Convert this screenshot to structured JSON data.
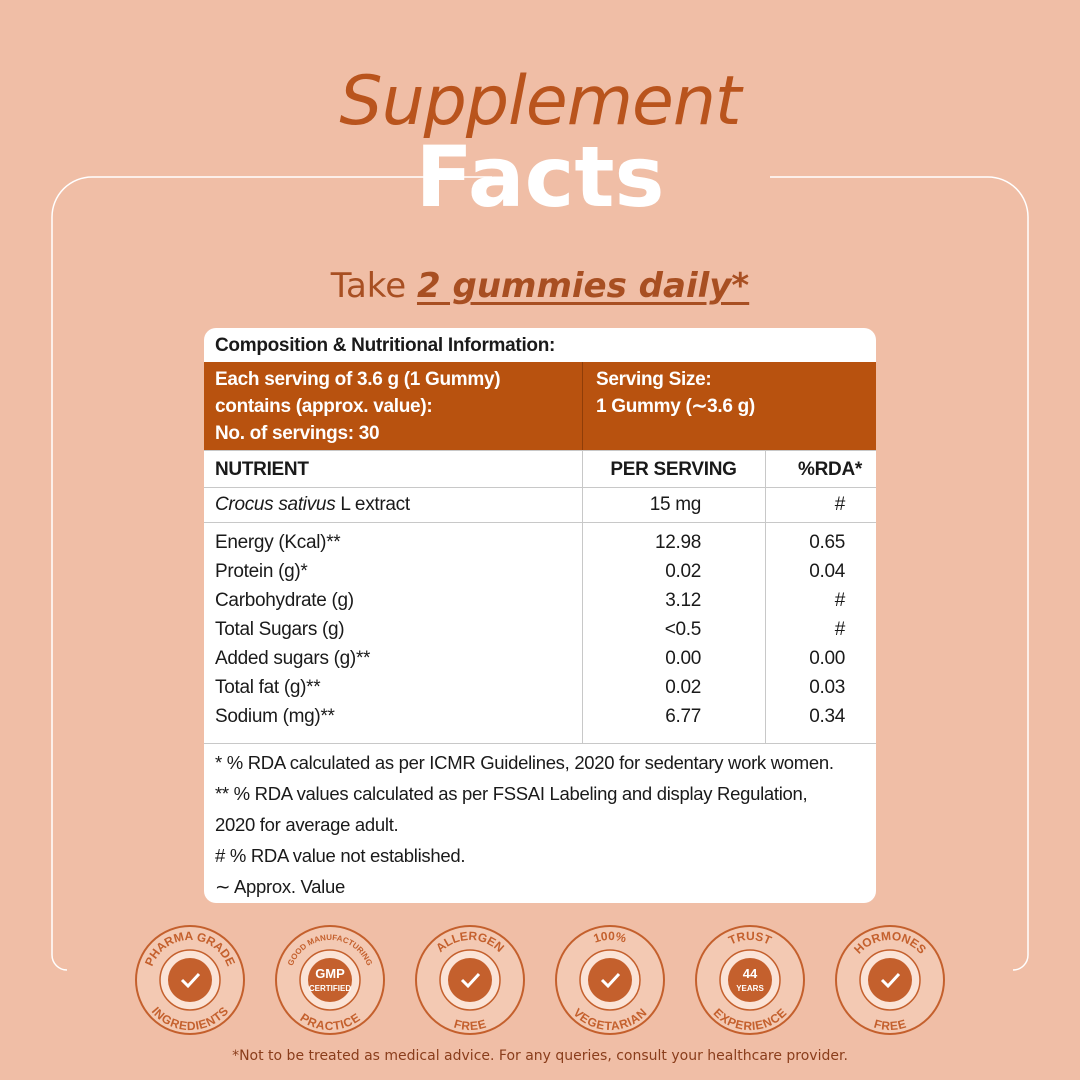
{
  "title": {
    "line1": "Supplement",
    "line2": "Facts"
  },
  "dosage": {
    "prefix": "Take",
    "emphasis": "2 gummies daily*"
  },
  "table": {
    "heading": "Composition & Nutritional Information:",
    "serving_info": [
      "Each serving of 3.6 g (1 Gummy)",
      "contains (approx. value):",
      "No. of servings: 30"
    ],
    "serving_size": [
      "Serving Size:",
      "1 Gummy (∼3.6 g)"
    ],
    "columns": [
      "NUTRIENT",
      "PER SERVING",
      "%RDA*"
    ],
    "extract": {
      "name_italic": "Crocus sativus",
      "name_rest": "L extract",
      "per_serving": "15 mg",
      "rda": "#"
    },
    "rows": [
      [
        "Energy (Kcal)**",
        "12.98",
        "0.65"
      ],
      [
        "Protein (g)*",
        "0.02",
        "0.04"
      ],
      [
        "Carbohydrate (g)",
        "3.12",
        "#"
      ],
      [
        "Total Sugars (g)",
        "<0.5",
        "#"
      ],
      [
        "Added sugars (g)**",
        "0.00",
        "0.00"
      ],
      [
        "Total fat (g)**",
        "0.02",
        "0.03"
      ],
      [
        "Sodium (mg)**",
        "6.77",
        "0.34"
      ]
    ],
    "footnotes": [
      "* % RDA calculated as per ICMR Guidelines, 2020 for sedentary work women.",
      "** % RDA values calculated as per FSSAI Labeling and display Regulation,",
      "2020 for average adult.",
      "# % RDA value not established.",
      "∼ Approx. Value"
    ]
  },
  "badges": [
    {
      "top": "PHARMA GRADE",
      "bottom": "INGREDIENTS"
    },
    {
      "top": "GOOD MANUFACTURING",
      "center": [
        "GMP",
        "CERTIFIED"
      ],
      "bottom": "PRACTICE"
    },
    {
      "top": "ALLERGEN",
      "bottom": "FREE"
    },
    {
      "top": "100%",
      "bottom": "VEGETARIAN"
    },
    {
      "top": "TRUST",
      "center": [
        "44",
        "YEARS"
      ],
      "bottom": "EXPERIENCE"
    },
    {
      "top": "HORMONES",
      "bottom": "FREE"
    }
  ],
  "disclaimer": "*Not to be treated as medical advice. For any queries, consult your healthcare provider."
}
